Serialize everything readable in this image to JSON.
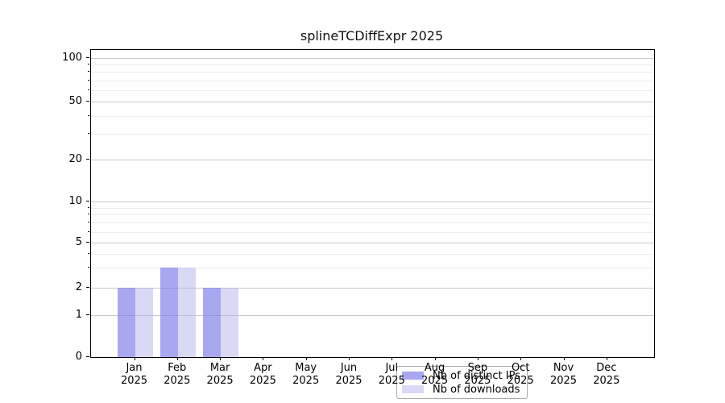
{
  "title": "splineTCDiffExpr 2025",
  "chart_data": {
    "type": "bar",
    "title": "splineTCDiffExpr 2025",
    "xlabel": "",
    "ylabel": "",
    "categories": [
      "Jan",
      "Feb",
      "Mar",
      "Apr",
      "May",
      "Jun",
      "Jul",
      "Aug",
      "Sep",
      "Oct",
      "Nov",
      "Dec"
    ],
    "category_year": "2025",
    "series": [
      {
        "name": "Nb of distinct IPs",
        "color": "rgba(121,121,232,0.65)",
        "swatch_color": "#a8a8f0",
        "values": [
          2,
          3,
          2,
          0,
          0,
          0,
          0,
          0,
          0,
          0,
          0,
          0
        ]
      },
      {
        "name": "Nb of downloads",
        "color": "rgba(171,171,235,0.45)",
        "swatch_color": "#d9d9f6",
        "values": [
          2,
          3,
          2,
          0,
          0,
          0,
          0,
          0,
          0,
          0,
          0,
          0
        ]
      }
    ],
    "y_axis": {
      "scale": "log-like",
      "ylim": [
        0,
        100
      ],
      "ticks": [
        0,
        1,
        2,
        5,
        10,
        20,
        50,
        100
      ],
      "minor_ticks": [
        3,
        4,
        6,
        7,
        8,
        9,
        30,
        40,
        60,
        70,
        80,
        90
      ]
    },
    "grid": true,
    "legend": {
      "position": "lower center",
      "entries": [
        "Nb of distinct IPs",
        "Nb of downloads"
      ]
    }
  }
}
